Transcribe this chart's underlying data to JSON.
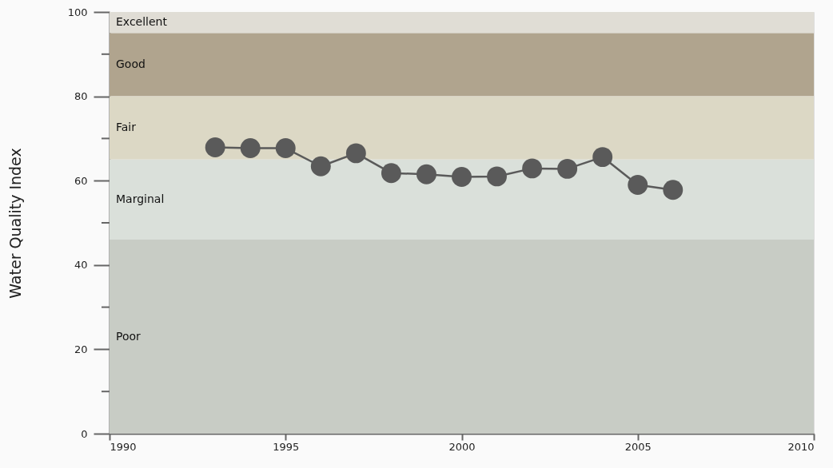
{
  "chart_data": {
    "type": "line",
    "ylabel": "Water Quality Index",
    "x": [
      1993,
      1994,
      1995,
      1996,
      1997,
      1998,
      1999,
      2000,
      2001,
      2002,
      2003,
      2004,
      2005,
      2006
    ],
    "series": [
      {
        "color": "#5a5a5a",
        "values": [
          67.9,
          67.7,
          67.7,
          63.4,
          66.5,
          61.8,
          61.5,
          60.9,
          61.0,
          62.9,
          62.8,
          65.6,
          59.0,
          57.8
        ]
      }
    ],
    "xlim": [
      1990,
      2010
    ],
    "xticks": [
      1990,
      1995,
      2000,
      2005,
      2010
    ],
    "ylim": [
      0,
      100
    ],
    "yticks": [
      0,
      {
        "value": 10,
        "label": null
      },
      20,
      {
        "value": 30,
        "label": null
      },
      40,
      {
        "value": 50,
        "label": null
      },
      60,
      {
        "value": 70,
        "label": null
      },
      80,
      {
        "value": 90,
        "label": null
      },
      100
    ],
    "bands": [
      {
        "axis": "y",
        "from": 95,
        "to": 100,
        "label": "Excellent",
        "color": "#e0ddd5"
      },
      {
        "axis": "y",
        "from": 80,
        "to": 95,
        "label": "Good",
        "color": "#b0a48e"
      },
      {
        "axis": "y",
        "from": 65,
        "to": 80,
        "label": "Fair",
        "color": "#dcd8c5"
      },
      {
        "axis": "y",
        "from": 46,
        "to": 65,
        "label": "Marginal",
        "color": "#dae0da"
      },
      {
        "axis": "y",
        "from": 0,
        "to": 46,
        "label": "Poor",
        "color": "#c8ccc5"
      }
    ],
    "marker": "circle",
    "line_style": "solid",
    "grid": false
  }
}
